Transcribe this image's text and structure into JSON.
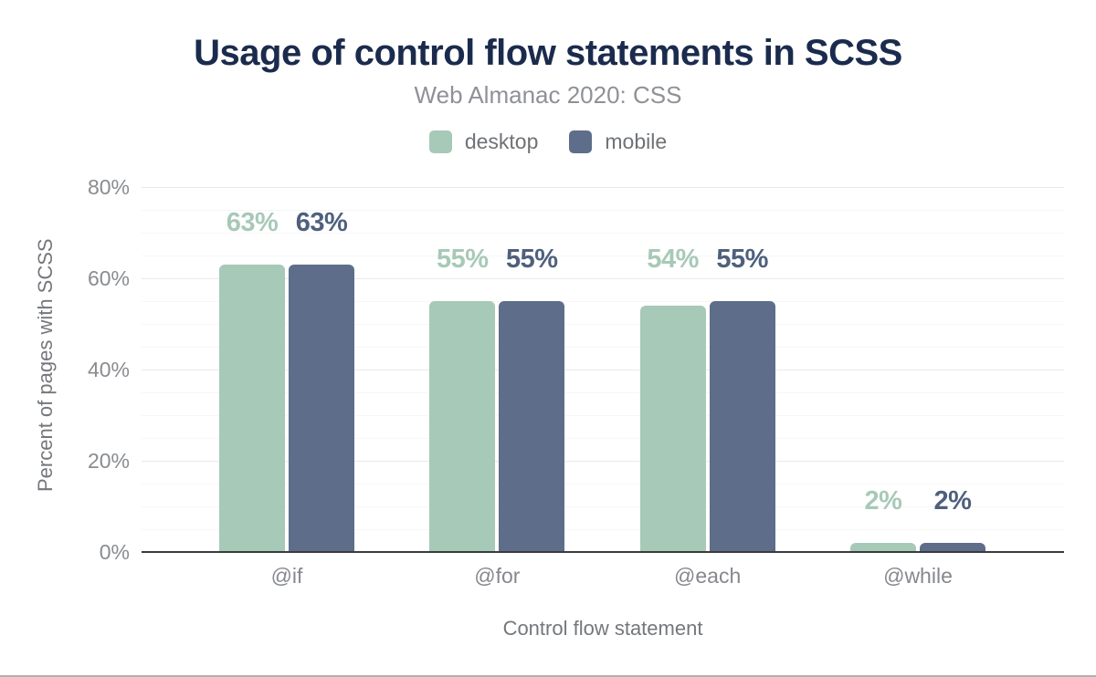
{
  "chart_data": {
    "type": "bar",
    "title": "Usage of control flow statements in SCSS",
    "subtitle": "Web Almanac 2020: CSS",
    "xlabel": "Control flow statement",
    "ylabel": "Percent of pages with SCSS",
    "categories": [
      "@if",
      "@for",
      "@each",
      "@while"
    ],
    "series": [
      {
        "name": "desktop",
        "color": "#a7c9b8",
        "label_color": "#a7c9b8",
        "values": [
          63,
          55,
          54,
          2
        ]
      },
      {
        "name": "mobile",
        "color": "#5e6e8a",
        "label_color": "#4f607d",
        "values": [
          63,
          55,
          55,
          2
        ]
      }
    ],
    "value_labels": [
      [
        "63%",
        "55%",
        "54%",
        "2%"
      ],
      [
        "63%",
        "55%",
        "55%",
        "2%"
      ]
    ],
    "ylim": [
      0,
      80
    ],
    "yticks": [
      0,
      20,
      40,
      60,
      80
    ],
    "ytick_labels": [
      "0%",
      "20%",
      "40%",
      "60%",
      "80%"
    ],
    "minor_grid_step": 5,
    "grid": true,
    "legend_position": "top"
  },
  "colors": {
    "title": "#1b2b4d",
    "subtitle": "#8e9196",
    "legend_text": "#6f7276",
    "axis_tick_text": "#898c90",
    "axis_title_text": "#74777b",
    "axis_line": "#3a3b3d",
    "grid_major": "#e8e8e8",
    "grid_minor": "#f6f6f6",
    "window_bottom_edge": "#b0b0b0"
  }
}
